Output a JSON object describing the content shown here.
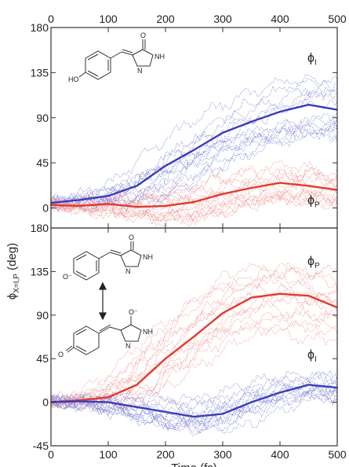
{
  "chart_data": [
    {
      "type": "line",
      "panel": "top",
      "x_axis": {
        "label": "",
        "ticks": [
          "0",
          "100",
          "200",
          "300",
          "400",
          "500"
        ],
        "range": [
          0,
          500
        ],
        "position": "top"
      },
      "y_axis": {
        "label": "",
        "ticks": [
          "0",
          "45",
          "90",
          "135",
          "180"
        ],
        "range": [
          -20,
          180
        ]
      },
      "labels": {
        "upper": "ϕ",
        "upper_sub": "I",
        "lower": "ϕ",
        "lower_sub": "P"
      },
      "colors": {
        "upper": "#3a3db8",
        "lower": "#e23a2c",
        "upper_traces": "#7a7fd8",
        "lower_traces": "#f08f8a"
      },
      "series": [
        {
          "name": "ϕI",
          "x": [
            0,
            50,
            100,
            150,
            200,
            250,
            300,
            350,
            400,
            450,
            500
          ],
          "values": [
            5,
            8,
            12,
            22,
            42,
            58,
            75,
            86,
            96,
            103,
            98
          ]
        },
        {
          "name": "ϕP",
          "x": [
            0,
            50,
            100,
            150,
            200,
            250,
            300,
            350,
            400,
            450,
            500
          ],
          "values": [
            3,
            2,
            4,
            1,
            2,
            6,
            14,
            20,
            25,
            22,
            18
          ]
        }
      ],
      "grid": false
    },
    {
      "type": "line",
      "panel": "bottom",
      "x_axis": {
        "label": "Time (fs)",
        "ticks": [
          "0",
          "100",
          "200",
          "300",
          "400",
          "500"
        ],
        "range": [
          0,
          500
        ],
        "position": "bottom"
      },
      "y_axis": {
        "label": "",
        "ticks": [
          "-45",
          "0",
          "45",
          "90",
          "135",
          "180"
        ],
        "range": [
          -45,
          180
        ]
      },
      "labels": {
        "upper": "ϕ",
        "upper_sub": "P",
        "lower": "ϕ",
        "lower_sub": "I"
      },
      "colors": {
        "upper": "#e23a2c",
        "lower": "#3a3db8",
        "upper_traces": "#f08f8a",
        "lower_traces": "#7a7fd8"
      },
      "series": [
        {
          "name": "ϕP",
          "x": [
            0,
            50,
            100,
            150,
            200,
            250,
            300,
            350,
            400,
            450,
            500
          ],
          "values": [
            0,
            2,
            5,
            18,
            45,
            68,
            92,
            108,
            112,
            110,
            98
          ]
        },
        {
          "name": "ϕI",
          "x": [
            0,
            50,
            100,
            150,
            200,
            250,
            300,
            350,
            400,
            450,
            500
          ],
          "values": [
            0,
            1,
            0,
            -5,
            -10,
            -15,
            -12,
            0,
            10,
            18,
            15
          ]
        }
      ],
      "grid": false
    }
  ],
  "shared_y_label": {
    "text": "ϕ",
    "sub": "X=I,P",
    "unit": " (deg)"
  },
  "molecules": {
    "top": {
      "hydroxyl": "HO",
      "oxo": "O",
      "nh": "NH",
      "ring_n": "N"
    },
    "bottom_a": {
      "phenolate": "O⁻",
      "oxo": "O",
      "nh": "NH",
      "ring_n": "N"
    },
    "bottom_b": {
      "quinone": "O",
      "olate": "O⁻",
      "nh": "NH",
      "ring_n": "N"
    }
  }
}
